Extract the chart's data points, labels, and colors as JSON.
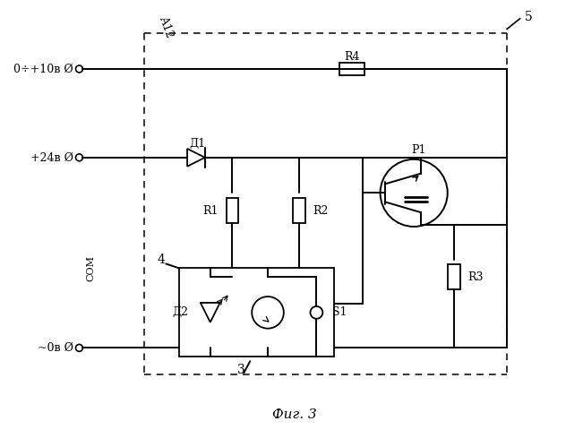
{
  "title": "Фиг. 3",
  "background": "#ffffff",
  "label_A12": "А12",
  "label_5": "5",
  "label_0_10V": "0÷+10в Ø",
  "label_24V": "+24в Ø",
  "label_COM": "Ø COM",
  "label_0V": "~0в Ø",
  "label_D1": "Д1",
  "label_D2": "Д2",
  "label_R1": "R1",
  "label_R2": "R2",
  "label_R3": "R3",
  "label_R4": "R4",
  "label_T1": "Р1",
  "label_S1": "S1",
  "label_4": "4",
  "label_3": "3"
}
